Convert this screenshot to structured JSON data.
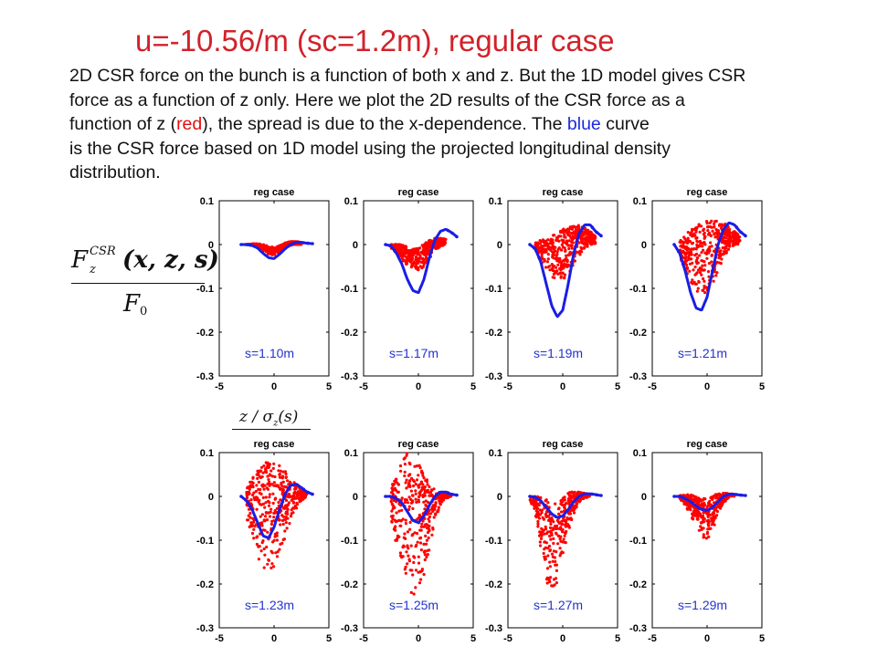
{
  "title": "u=-10.56/m  (sc=1.2m), regular case",
  "description": {
    "lines": [
      {
        "parts": [
          {
            "t": "2D CSR force on the bunch is a function of both x and z. But the 1D model gives CSR",
            "c": ""
          }
        ]
      },
      {
        "parts": [
          {
            "t": "force as a function of z only. Here we plot the 2D results of the CSR force as a",
            "c": ""
          }
        ]
      },
      {
        "parts": [
          {
            "t": "function of z (",
            "c": ""
          },
          {
            "t": "red",
            "c": "red"
          },
          {
            "t": "), the spread is due to the x-dependence. The ",
            "c": ""
          },
          {
            "t": "blue",
            "c": "blue"
          },
          {
            "t": " curve",
            "c": ""
          }
        ]
      },
      {
        "parts": [
          {
            "t": "is the CSR force based on 1D model using the projected longitudinal density",
            "c": ""
          }
        ]
      },
      {
        "parts": [
          {
            "t": "distribution.",
            "c": ""
          }
        ]
      }
    ]
  },
  "equation": {
    "numerator_F": "F",
    "numerator_sub": "z",
    "numerator_sup": "CSR",
    "numerator_args": "(x, z, s)",
    "denominator_F": "F",
    "denominator_sub": "0",
    "xaxis_label": "z / σ",
    "xaxis_sub": "z",
    "xaxis_args": "(s)"
  },
  "colors": {
    "title": "#d1222a",
    "scatter": "#ff0000",
    "curve": "#1a1ee6",
    "label": "#2233cc"
  },
  "chart_data": [
    {
      "type": "scatter",
      "title": "reg case",
      "s_label": "s=1.10m",
      "xlim": [
        -5,
        5
      ],
      "ylim": [
        -0.3,
        0.1
      ],
      "yticks": [
        "0.1",
        "0",
        "-0.1",
        "-0.2",
        "-0.3"
      ],
      "xticks": [
        "-5",
        "0",
        "5"
      ],
      "curve": {
        "x": [
          -3,
          -2.5,
          -2,
          -1.5,
          -1,
          -0.5,
          0,
          0.5,
          1,
          1.5,
          2,
          2.5,
          3,
          3.5
        ],
        "y": [
          0,
          0,
          -0.002,
          -0.008,
          -0.02,
          -0.03,
          -0.032,
          -0.022,
          -0.01,
          0,
          0.005,
          0.005,
          0.003,
          0.002
        ]
      },
      "spread": {
        "x": [
          -2.5,
          -2,
          -1.5,
          -1,
          -0.5,
          0,
          0.5,
          1,
          1.5,
          2,
          2.5
        ],
        "ymin": [
          0,
          -0.002,
          -0.007,
          -0.015,
          -0.022,
          -0.024,
          -0.02,
          -0.01,
          -0.002,
          0,
          0
        ],
        "ymax": [
          0,
          0.002,
          0.002,
          0.001,
          -0.004,
          -0.006,
          -0.002,
          0.004,
          0.007,
          0.007,
          0.005
        ]
      }
    },
    {
      "type": "scatter",
      "title": "reg case",
      "s_label": "s=1.17m",
      "xlim": [
        -5,
        5
      ],
      "ylim": [
        -0.3,
        0.1
      ],
      "yticks": [
        "0.1",
        "0",
        "-0.1",
        "-0.2",
        "-0.3"
      ],
      "xticks": [
        "-5",
        "0",
        "5"
      ],
      "curve": {
        "x": [
          -3,
          -2.5,
          -2,
          -1.5,
          -1,
          -0.5,
          0,
          0.5,
          1,
          1.5,
          2,
          2.5,
          3,
          3.5
        ],
        "y": [
          0,
          -0.003,
          -0.02,
          -0.045,
          -0.08,
          -0.105,
          -0.11,
          -0.08,
          -0.03,
          0.01,
          0.03,
          0.035,
          0.028,
          0.018
        ]
      },
      "spread": {
        "x": [
          -2.5,
          -2,
          -1.5,
          -1,
          -0.5,
          0,
          0.5,
          1,
          1.5,
          2,
          2.5
        ],
        "ymin": [
          -0.008,
          -0.02,
          -0.035,
          -0.048,
          -0.058,
          -0.06,
          -0.05,
          -0.032,
          -0.015,
          -0.005,
          0
        ],
        "ymax": [
          0,
          0.002,
          0,
          -0.005,
          -0.01,
          -0.008,
          0.002,
          0.01,
          0.015,
          0.015,
          0.012
        ]
      }
    },
    {
      "type": "scatter",
      "title": "reg case",
      "s_label": "s=1.19m",
      "xlim": [
        -5,
        5
      ],
      "ylim": [
        -0.3,
        0.1
      ],
      "yticks": [
        "0.1",
        "0",
        "-0.1",
        "-0.2",
        "-0.3"
      ],
      "xticks": [
        "-5",
        "0",
        "5"
      ],
      "curve": {
        "x": [
          -3,
          -2.5,
          -2,
          -1.5,
          -1,
          -0.5,
          0,
          0.5,
          1,
          1.5,
          2,
          2.5,
          3,
          3.5
        ],
        "y": [
          0,
          -0.01,
          -0.04,
          -0.09,
          -0.14,
          -0.165,
          -0.15,
          -0.09,
          -0.02,
          0.025,
          0.045,
          0.045,
          0.03,
          0.02
        ]
      },
      "spread": {
        "x": [
          -2.5,
          -2,
          -1.5,
          -1,
          -0.5,
          0,
          0.5,
          1,
          1.5,
          2,
          2.5,
          3
        ],
        "ymin": [
          -0.015,
          -0.04,
          -0.06,
          -0.075,
          -0.085,
          -0.085,
          -0.07,
          -0.05,
          -0.03,
          -0.01,
          0,
          0
        ],
        "ymax": [
          0.005,
          0.01,
          0.015,
          0.02,
          0.025,
          0.035,
          0.04,
          0.045,
          0.045,
          0.04,
          0.03,
          0.02
        ]
      }
    },
    {
      "type": "scatter",
      "title": "reg case",
      "s_label": "s=1.21m",
      "xlim": [
        -5,
        5
      ],
      "ylim": [
        -0.3,
        0.1
      ],
      "yticks": [
        "0.1",
        "0",
        "-0.1",
        "-0.2",
        "-0.3"
      ],
      "xticks": [
        "-5",
        "0",
        "5"
      ],
      "curve": {
        "x": [
          -3,
          -2.5,
          -2,
          -1.5,
          -1,
          -0.5,
          0,
          0.5,
          1,
          1.5,
          2,
          2.5,
          3,
          3.5
        ],
        "y": [
          0,
          -0.02,
          -0.06,
          -0.11,
          -0.145,
          -0.15,
          -0.12,
          -0.06,
          0,
          0.035,
          0.05,
          0.045,
          0.03,
          0.02
        ]
      },
      "spread": {
        "x": [
          -2.5,
          -2,
          -1.5,
          -1,
          -0.5,
          0,
          0.5,
          1,
          1.5,
          2,
          2.5,
          3
        ],
        "ymin": [
          -0.03,
          -0.06,
          -0.085,
          -0.105,
          -0.115,
          -0.11,
          -0.09,
          -0.06,
          -0.03,
          -0.01,
          0,
          0
        ],
        "ymax": [
          0.01,
          0.02,
          0.035,
          0.045,
          0.05,
          0.055,
          0.055,
          0.055,
          0.05,
          0.04,
          0.03,
          0.02
        ]
      }
    },
    {
      "type": "scatter",
      "title": "reg case",
      "s_label": "s=1.23m",
      "xlim": [
        -5,
        5
      ],
      "ylim": [
        -0.3,
        0.1
      ],
      "yticks": [
        "0.1",
        "0",
        "-0.1",
        "-0.2",
        "-0.3"
      ],
      "xticks": [
        "-5",
        "0",
        "5"
      ],
      "curve": {
        "x": [
          -3,
          -2.5,
          -2,
          -1.5,
          -1,
          -0.5,
          0,
          0.5,
          1,
          1.5,
          2,
          2.5,
          3,
          3.5
        ],
        "y": [
          0,
          -0.01,
          -0.03,
          -0.06,
          -0.09,
          -0.095,
          -0.07,
          -0.03,
          0.005,
          0.025,
          0.028,
          0.02,
          0.01,
          0.005
        ]
      },
      "spread": {
        "x": [
          -2.5,
          -2,
          -1.5,
          -1,
          -0.5,
          0,
          0.5,
          1,
          1.5,
          2,
          2.5,
          3
        ],
        "ymin": [
          -0.05,
          -0.1,
          -0.14,
          -0.165,
          -0.175,
          -0.165,
          -0.14,
          -0.1,
          -0.06,
          -0.03,
          -0.01,
          0
        ],
        "ymax": [
          0.02,
          0.04,
          0.06,
          0.075,
          0.08,
          0.078,
          0.07,
          0.06,
          0.045,
          0.03,
          0.018,
          0.01
        ]
      }
    },
    {
      "type": "scatter",
      "title": "reg case",
      "s_label": "s=1.25m",
      "xlim": [
        -5,
        5
      ],
      "ylim": [
        -0.3,
        0.1
      ],
      "yticks": [
        "0.1",
        "0",
        "-0.1",
        "-0.2",
        "-0.3"
      ],
      "xticks": [
        "-5",
        "0",
        "5"
      ],
      "curve": {
        "x": [
          -3,
          -2.5,
          -2,
          -1.5,
          -1,
          -0.5,
          0,
          0.5,
          1,
          1.5,
          2,
          2.5,
          3,
          3.5
        ],
        "y": [
          0,
          0,
          -0.005,
          -0.015,
          -0.035,
          -0.055,
          -0.06,
          -0.045,
          -0.02,
          0,
          0.01,
          0.01,
          0.005,
          0.003
        ]
      },
      "spread": {
        "x": [
          -2.5,
          -2,
          -1.5,
          -1,
          -0.5,
          0,
          0.5,
          1,
          1.5,
          2,
          2.5,
          3
        ],
        "ymin": [
          -0.05,
          -0.12,
          -0.18,
          -0.22,
          -0.235,
          -0.22,
          -0.18,
          -0.12,
          -0.06,
          -0.02,
          -0.005,
          0
        ],
        "ymax": [
          0.02,
          0.05,
          0.08,
          0.1,
          0.1,
          0.08,
          0.05,
          0.03,
          0.015,
          0.01,
          0.008,
          0.005
        ]
      }
    },
    {
      "type": "scatter",
      "title": "reg case",
      "s_label": "s=1.27m",
      "xlim": [
        -5,
        5
      ],
      "ylim": [
        -0.3,
        0.1
      ],
      "yticks": [
        "0.1",
        "0",
        "-0.1",
        "-0.2",
        "-0.3"
      ],
      "xticks": [
        "-5",
        "0",
        "5"
      ],
      "curve": {
        "x": [
          -3,
          -2.5,
          -2,
          -1.5,
          -1,
          -0.5,
          0,
          0.5,
          1,
          1.5,
          2,
          2.5,
          3,
          3.5
        ],
        "y": [
          0,
          -0.002,
          -0.01,
          -0.025,
          -0.04,
          -0.048,
          -0.045,
          -0.03,
          -0.012,
          0,
          0.006,
          0.006,
          0.004,
          0.002
        ]
      },
      "spread": {
        "x": [
          -3,
          -2.5,
          -2,
          -1.5,
          -1,
          -0.5,
          0,
          0.5,
          1,
          1.5,
          2,
          2.5
        ],
        "ymin": [
          -0.01,
          -0.04,
          -0.12,
          -0.2,
          -0.24,
          -0.2,
          -0.14,
          -0.08,
          -0.04,
          -0.015,
          -0.005,
          0
        ],
        "ymax": [
          0,
          0,
          -0.002,
          -0.005,
          -0.01,
          -0.01,
          0,
          0.01,
          0.012,
          0.01,
          0.008,
          0.005
        ]
      }
    },
    {
      "type": "scatter",
      "title": "reg case",
      "s_label": "s=1.29m",
      "xlim": [
        -5,
        5
      ],
      "ylim": [
        -0.3,
        0.1
      ],
      "yticks": [
        "0.1",
        "0",
        "-0.1",
        "-0.2",
        "-0.3"
      ],
      "xticks": [
        "-5",
        "0",
        "5"
      ],
      "curve": {
        "x": [
          -3,
          -2.5,
          -2,
          -1.5,
          -1,
          -0.5,
          0,
          0.5,
          1,
          1.5,
          2,
          2.5,
          3,
          3.5
        ],
        "y": [
          0,
          0,
          -0.005,
          -0.012,
          -0.022,
          -0.03,
          -0.032,
          -0.025,
          -0.012,
          0,
          0.005,
          0.005,
          0.003,
          0.002
        ]
      },
      "spread": {
        "x": [
          -2.5,
          -2,
          -1.5,
          -1,
          -0.5,
          0,
          0.5,
          1,
          1.5,
          2,
          2.5
        ],
        "ymin": [
          -0.005,
          -0.02,
          -0.045,
          -0.07,
          -0.09,
          -0.1,
          -0.08,
          -0.04,
          -0.015,
          -0.003,
          0
        ],
        "ymax": [
          0.002,
          0.004,
          0.004,
          0,
          -0.005,
          -0.003,
          0.002,
          0.006,
          0.008,
          0.007,
          0.005
        ]
      }
    }
  ]
}
